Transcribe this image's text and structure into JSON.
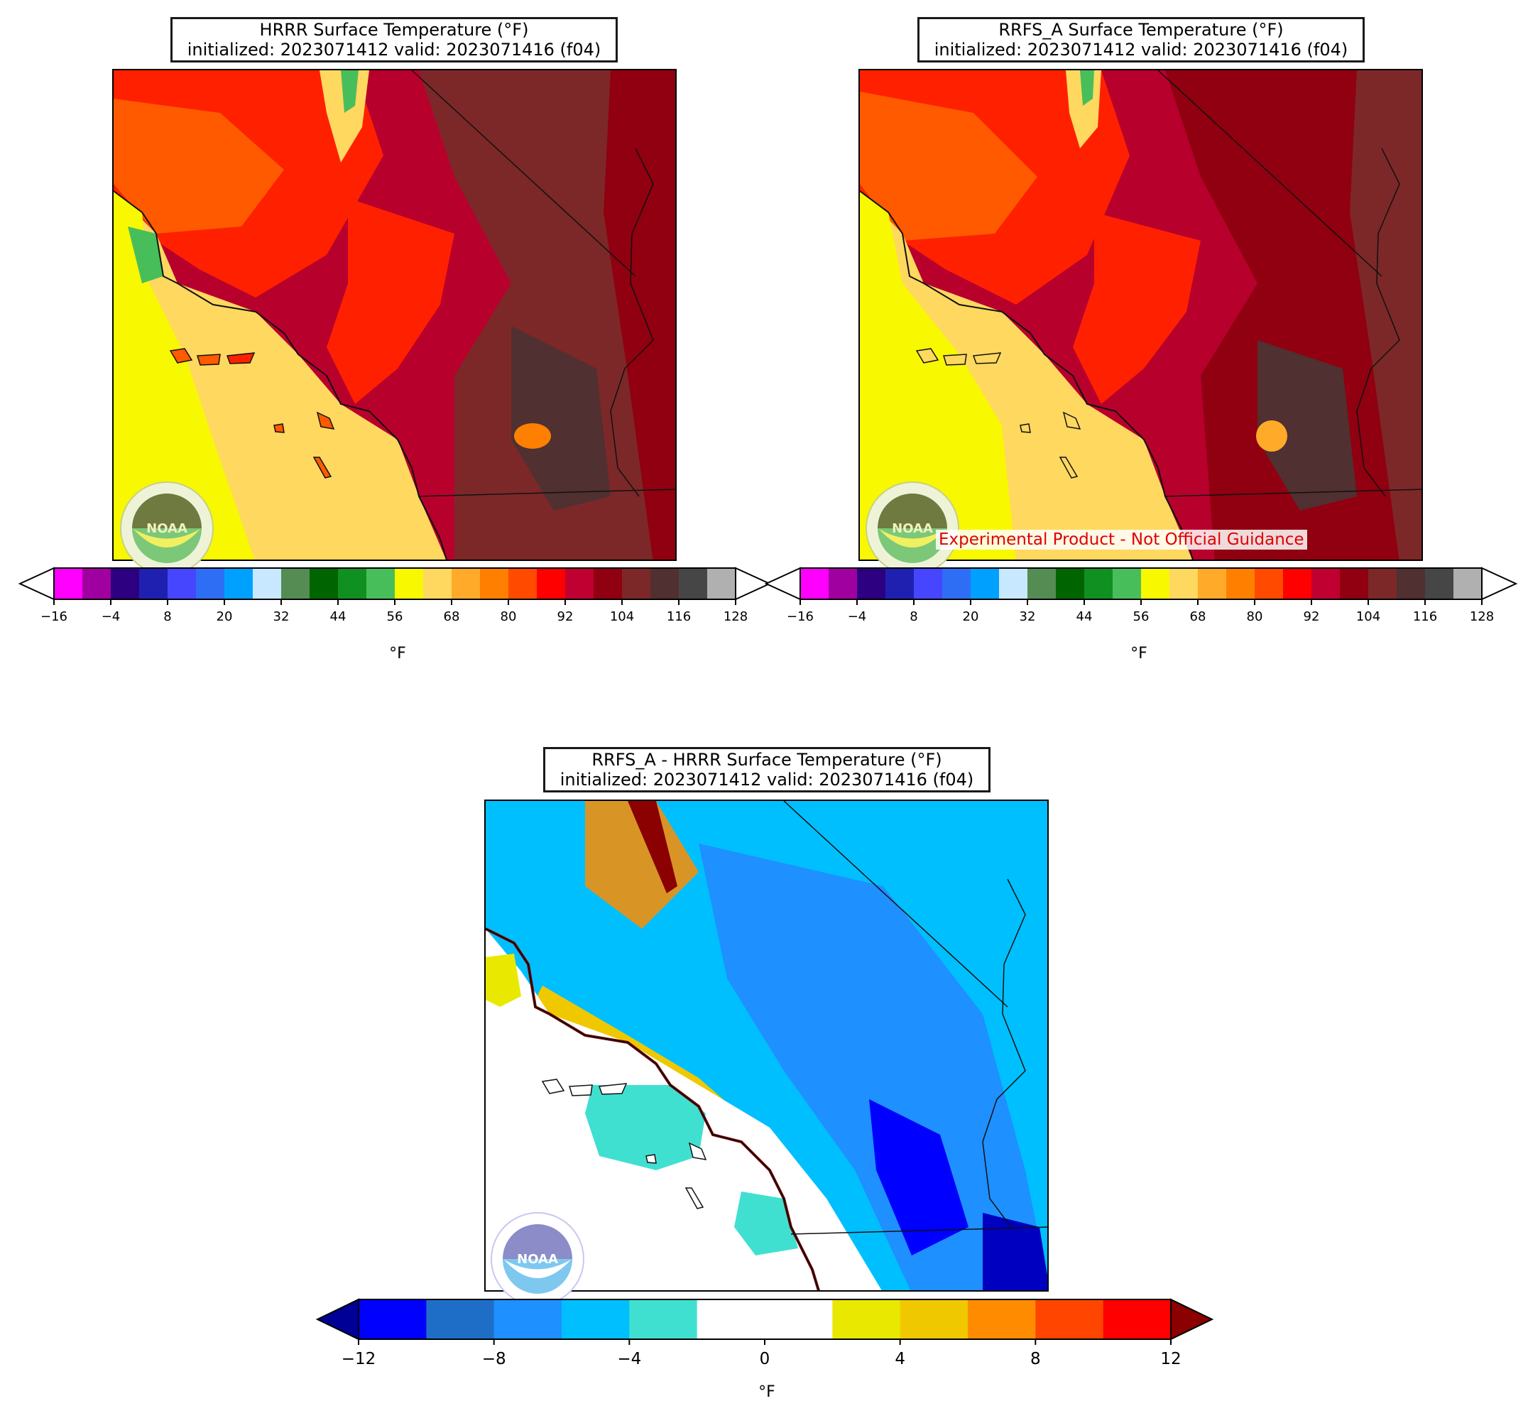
{
  "panels": {
    "hrrr": {
      "title_line1": "HRRR Surface Temperature (°F)",
      "title_line2": "initialized: 2023071412 valid: 2023071416 (f04)"
    },
    "rrfs": {
      "title_line1": "RRFS_A Surface Temperature (°F)",
      "title_line2": "initialized: 2023071412 valid: 2023071416 (f04)",
      "disclaimer": "Experimental Product - Not Official Guidance"
    },
    "diff": {
      "title_line1": "RRFS_A - HRRR Surface Temperature (°F)",
      "title_line2": "initialized: 2023071412 valid: 2023071416 (f04)"
    }
  },
  "temp_colorbar": {
    "unit": "°F",
    "ticks": [
      "−16",
      "−4",
      "8",
      "20",
      "32",
      "44",
      "56",
      "68",
      "80",
      "92",
      "104",
      "116",
      "128"
    ],
    "colors": [
      "#ff00ff",
      "#a000a0",
      "#2c0080",
      "#2020b0",
      "#4646ff",
      "#2e6ef5",
      "#00a0ff",
      "#c8e8ff",
      "#548c54",
      "#006400",
      "#109020",
      "#48be5a",
      "#f8f800",
      "#ffd860",
      "#ffaa28",
      "#ff8000",
      "#ff4a00",
      "#ff0000",
      "#c00030",
      "#900010",
      "#7c2828",
      "#503030",
      "#464646",
      "#b0b0b0"
    ],
    "extend_low_color": "#ffffff",
    "extend_high_color": "#ffffff"
  },
  "diff_colorbar": {
    "unit": "°F",
    "ticks": [
      "−12",
      "−8",
      "−4",
      "0",
      "4",
      "8",
      "12"
    ],
    "colors": [
      "#0000ff",
      "#1e6ec8",
      "#1e90ff",
      "#00bfff",
      "#40e0d0",
      "#ffffff",
      "#ffffff",
      "#e8e800",
      "#f0c800",
      "#ff8c00",
      "#ff4500",
      "#ff0000"
    ],
    "extend_low_color": "#000096",
    "extend_high_color": "#8b0000"
  },
  "logo": {
    "text": "NOAA"
  },
  "palette": {
    "ocean_hrrr": "#f8f800",
    "near_ocean": "#ffd860",
    "hot": "#900010",
    "warm": "#ff2000",
    "diff_cool": "#1e90ff",
    "diff_warm": "#f0c800"
  }
}
